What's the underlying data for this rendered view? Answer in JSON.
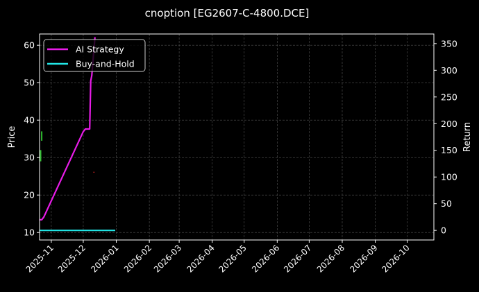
{
  "chart_data": {
    "type": "line",
    "title": "cnoption [EG2607-C-4800.DCE]",
    "ylabel_left": "Price",
    "ylabel_right": "Return",
    "xlim": [
      "2025-10-21",
      "2026-10-26"
    ],
    "ylim_left": [
      8,
      63
    ],
    "ylim_right": [
      -18,
      368
    ],
    "x_ticks": [
      "2025-11",
      "2025-12",
      "2026-01",
      "2026-02",
      "2026-03",
      "2026-04",
      "2026-05",
      "2026-06",
      "2026-07",
      "2026-08",
      "2026-09",
      "2026-10"
    ],
    "y_ticks_left": [
      10,
      20,
      30,
      40,
      50,
      60
    ],
    "y_ticks_right": [
      0,
      50,
      100,
      150,
      200,
      250,
      300,
      350
    ],
    "grid": true,
    "legend_position": "top-left",
    "series": [
      {
        "name": "AI Strategy",
        "axis": "right",
        "color": "#e81ce8",
        "points": [
          [
            "2025-10-21",
            20
          ],
          [
            "2025-10-23",
            20
          ],
          [
            "2025-10-25",
            25
          ],
          [
            "2025-12-01",
            185
          ],
          [
            "2025-12-03",
            190
          ],
          [
            "2025-12-07",
            190
          ],
          [
            "2025-12-08",
            280
          ],
          [
            "2025-12-09",
            290
          ],
          [
            "2025-12-12",
            362
          ]
        ]
      },
      {
        "name": "Buy-and-Hold",
        "axis": "right",
        "color": "#22e6e6",
        "points": [
          [
            "2025-10-21",
            0
          ],
          [
            "2025-12-31",
            0
          ]
        ]
      }
    ],
    "price_marks": [
      {
        "date": "2025-10-23",
        "low": 34.5,
        "high": 37.0,
        "color": "#2eb82e"
      },
      {
        "date": "2025-10-22",
        "low": 29.0,
        "high": 32.0,
        "color": "#2eb82e"
      },
      {
        "date": "2025-12-11",
        "low": 26.0,
        "high": 26.2,
        "color": "#cc2222"
      }
    ]
  }
}
